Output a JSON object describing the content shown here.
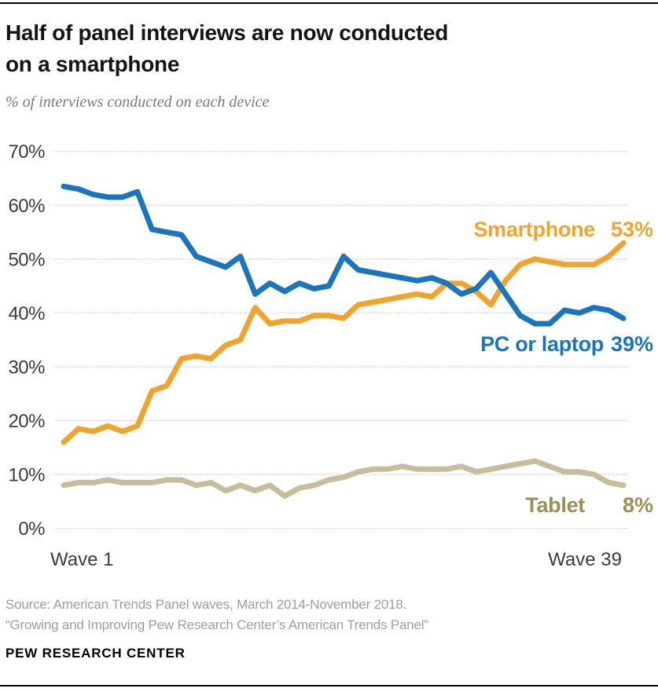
{
  "header": {
    "title": "Half of panel interviews are now conducted\non a smartphone",
    "subtitle": "% of interviews conducted on each device"
  },
  "chart_data": {
    "type": "line",
    "title": "Half of panel interviews are now conducted on a smartphone",
    "subtitle": "% of interviews conducted on each device",
    "x_axis": {
      "start_label": "Wave 1",
      "end_label": "Wave 39",
      "num_points": 39
    },
    "y_axis": {
      "ticks": [
        70,
        60,
        50,
        40,
        30,
        20,
        10,
        0
      ],
      "unit": "%",
      "ylim": [
        0,
        70
      ],
      "grid": "dotted"
    },
    "grid_color": "#c4c4c4",
    "series": [
      {
        "name": "Smartphone",
        "color": "#F0A430",
        "label_color": "#F0A430",
        "end_value_label": "53%",
        "values": [
          16,
          18.5,
          18,
          19,
          18,
          19,
          25.5,
          26.5,
          31.5,
          32,
          31.5,
          34,
          35,
          41,
          38,
          38.5,
          38.5,
          39.5,
          39.5,
          39,
          41.5,
          42,
          42.5,
          43,
          43.5,
          43,
          45.5,
          45.5,
          44,
          41.5,
          46,
          49,
          50,
          49.5,
          49,
          49,
          49,
          50.5,
          53
        ]
      },
      {
        "name": "PC or laptop",
        "color": "#1B75BC",
        "label_color": "#1B75BC",
        "end_value_label": "39%",
        "values": [
          63.5,
          63,
          62,
          61.5,
          61.5,
          62.5,
          55.5,
          55,
          54.5,
          50.5,
          49.5,
          48.5,
          50.5,
          43.5,
          45.5,
          44,
          45.5,
          44.5,
          45,
          50.5,
          48,
          47.5,
          47,
          46.5,
          46,
          46.5,
          45.5,
          43.5,
          44.5,
          47.5,
          43.5,
          39.5,
          38,
          38,
          40.5,
          40,
          41,
          40.5,
          39
        ]
      },
      {
        "name": "Tablet",
        "color": "#C6BD9C",
        "label_color": "#9C9054",
        "end_value_label": "8%",
        "values": [
          8,
          8.5,
          8.5,
          9,
          8.5,
          8.5,
          8.5,
          9,
          9,
          8,
          8.5,
          7,
          8,
          7,
          8,
          6,
          7.5,
          8,
          9,
          9.5,
          10.5,
          11,
          11,
          11.5,
          11,
          11,
          11,
          11.5,
          10.5,
          11,
          11.5,
          12,
          12.5,
          11.5,
          10.5,
          10.5,
          10,
          8.5,
          8
        ]
      }
    ]
  },
  "footer": {
    "source_line1": "Source: American Trends Panel waves, March 2014-November 2018.",
    "source_line2": "“Growing and Improving Pew Research Center’s American Trends Panel”",
    "brand": "PEW RESEARCH CENTER"
  }
}
